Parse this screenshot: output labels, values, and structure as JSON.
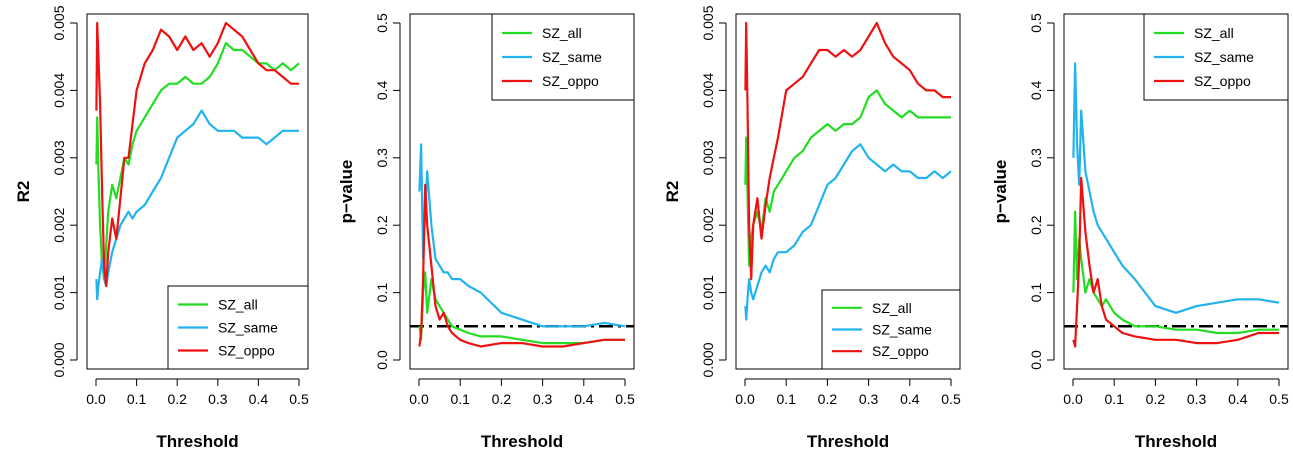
{
  "chart_data": [
    {
      "type": "line",
      "xlabel": "Threshold",
      "ylabel": "R2",
      "xlim": [
        0,
        0.5
      ],
      "ylim": [
        0,
        0.005
      ],
      "xticks": [
        0.0,
        0.1,
        0.2,
        0.3,
        0.4,
        0.5
      ],
      "xtick_labels": [
        "0.0",
        "0.1",
        "0.2",
        "0.3",
        "0.4",
        "0.5"
      ],
      "yticks": [
        0,
        0.001,
        0.002,
        0.003,
        0.004,
        0.005
      ],
      "ytick_labels": [
        "0.000",
        "0.001",
        "0.002",
        "0.003",
        "0.004",
        "0.005"
      ],
      "ytick_rotated": true,
      "legend_position": "bottom-right",
      "series": [
        {
          "name": "SZ_all",
          "color": "#22dd22",
          "x": [
            0.001,
            0.003,
            0.006,
            0.01,
            0.015,
            0.02,
            0.025,
            0.03,
            0.04,
            0.05,
            0.06,
            0.07,
            0.08,
            0.09,
            0.1,
            0.12,
            0.14,
            0.16,
            0.18,
            0.2,
            0.22,
            0.24,
            0.26,
            0.28,
            0.3,
            0.32,
            0.34,
            0.36,
            0.38,
            0.4,
            0.42,
            0.44,
            0.46,
            0.48,
            0.5
          ],
          "y": [
            0.0029,
            0.0036,
            0.0028,
            0.002,
            0.0014,
            0.0012,
            0.0017,
            0.0022,
            0.0026,
            0.0024,
            0.0027,
            0.003,
            0.0029,
            0.0032,
            0.0034,
            0.0036,
            0.0038,
            0.004,
            0.0041,
            0.0041,
            0.0042,
            0.0041,
            0.0041,
            0.0042,
            0.0044,
            0.0047,
            0.0046,
            0.0046,
            0.0045,
            0.0044,
            0.0044,
            0.0043,
            0.0044,
            0.0043,
            0.0044
          ]
        },
        {
          "name": "SZ_same",
          "color": "#22b3ee",
          "x": [
            0.001,
            0.003,
            0.006,
            0.01,
            0.015,
            0.02,
            0.025,
            0.03,
            0.04,
            0.05,
            0.06,
            0.07,
            0.08,
            0.09,
            0.1,
            0.12,
            0.14,
            0.16,
            0.18,
            0.2,
            0.22,
            0.24,
            0.26,
            0.28,
            0.3,
            0.32,
            0.34,
            0.36,
            0.38,
            0.4,
            0.42,
            0.44,
            0.46,
            0.48,
            0.5
          ],
          "y": [
            0.0012,
            0.0009,
            0.0011,
            0.0013,
            0.0015,
            0.0012,
            0.0011,
            0.0013,
            0.0016,
            0.0018,
            0.002,
            0.0021,
            0.0022,
            0.0021,
            0.0022,
            0.0023,
            0.0025,
            0.0027,
            0.003,
            0.0033,
            0.0034,
            0.0035,
            0.0037,
            0.0035,
            0.0034,
            0.0034,
            0.0034,
            0.0033,
            0.0033,
            0.0033,
            0.0032,
            0.0033,
            0.0034,
            0.0034,
            0.0034
          ]
        },
        {
          "name": "SZ_oppo",
          "color": "#ee1111",
          "x": [
            0.001,
            0.003,
            0.006,
            0.01,
            0.015,
            0.02,
            0.025,
            0.03,
            0.04,
            0.05,
            0.06,
            0.07,
            0.08,
            0.09,
            0.1,
            0.12,
            0.14,
            0.16,
            0.18,
            0.2,
            0.22,
            0.24,
            0.26,
            0.28,
            0.3,
            0.32,
            0.34,
            0.36,
            0.38,
            0.4,
            0.42,
            0.44,
            0.46,
            0.48,
            0.5
          ],
          "y": [
            0.0037,
            0.005,
            0.0045,
            0.0038,
            0.0025,
            0.0014,
            0.0011,
            0.0016,
            0.0021,
            0.0018,
            0.0024,
            0.003,
            0.003,
            0.0035,
            0.004,
            0.0044,
            0.0046,
            0.0049,
            0.0048,
            0.0046,
            0.0048,
            0.0046,
            0.0047,
            0.0045,
            0.0047,
            0.005,
            0.0049,
            0.0048,
            0.0046,
            0.0044,
            0.0043,
            0.0043,
            0.0042,
            0.0041,
            0.0041
          ]
        }
      ]
    },
    {
      "type": "line",
      "xlabel": "Threshold",
      "ylabel": "p−value",
      "xlim": [
        0,
        0.5
      ],
      "ylim": [
        0,
        0.5
      ],
      "xticks": [
        0.0,
        0.1,
        0.2,
        0.3,
        0.4,
        0.5
      ],
      "xtick_labels": [
        "0.0",
        "0.1",
        "0.2",
        "0.3",
        "0.4",
        "0.5"
      ],
      "yticks": [
        0.0,
        0.1,
        0.2,
        0.3,
        0.4,
        0.5
      ],
      "ytick_labels": [
        "0.0",
        "0.1",
        "0.2",
        "0.3",
        "0.4",
        "0.5"
      ],
      "ytick_rotated": true,
      "legend_position": "top-right",
      "reference_line": {
        "y": 0.05,
        "style": "dashed",
        "color": "#000000"
      },
      "series": [
        {
          "name": "SZ_all",
          "color": "#22dd22",
          "x": [
            0.001,
            0.005,
            0.01,
            0.015,
            0.02,
            0.03,
            0.04,
            0.05,
            0.06,
            0.07,
            0.08,
            0.1,
            0.12,
            0.15,
            0.2,
            0.25,
            0.3,
            0.35,
            0.4,
            0.45,
            0.5
          ],
          "y": [
            0.05,
            0.03,
            0.1,
            0.13,
            0.07,
            0.12,
            0.09,
            0.08,
            0.07,
            0.06,
            0.05,
            0.045,
            0.04,
            0.035,
            0.035,
            0.03,
            0.025,
            0.025,
            0.025,
            0.03,
            0.03
          ]
        },
        {
          "name": "SZ_same",
          "color": "#22b3ee",
          "x": [
            0.001,
            0.005,
            0.01,
            0.015,
            0.02,
            0.03,
            0.04,
            0.05,
            0.06,
            0.07,
            0.08,
            0.1,
            0.12,
            0.15,
            0.2,
            0.25,
            0.3,
            0.35,
            0.4,
            0.45,
            0.5
          ],
          "y": [
            0.25,
            0.32,
            0.15,
            0.22,
            0.28,
            0.2,
            0.15,
            0.14,
            0.13,
            0.13,
            0.12,
            0.12,
            0.11,
            0.1,
            0.07,
            0.06,
            0.05,
            0.05,
            0.05,
            0.055,
            0.05
          ]
        },
        {
          "name": "SZ_oppo",
          "color": "#ee1111",
          "x": [
            0.001,
            0.005,
            0.01,
            0.015,
            0.02,
            0.03,
            0.04,
            0.05,
            0.06,
            0.07,
            0.08,
            0.1,
            0.12,
            0.15,
            0.2,
            0.25,
            0.3,
            0.35,
            0.4,
            0.45,
            0.5
          ],
          "y": [
            0.02,
            0.04,
            0.12,
            0.26,
            0.2,
            0.14,
            0.08,
            0.06,
            0.07,
            0.05,
            0.04,
            0.03,
            0.025,
            0.02,
            0.025,
            0.025,
            0.02,
            0.02,
            0.025,
            0.03,
            0.03
          ]
        }
      ]
    },
    {
      "type": "line",
      "xlabel": "Threshold",
      "ylabel": "R2",
      "xlim": [
        0,
        0.5
      ],
      "ylim": [
        0,
        0.005
      ],
      "xticks": [
        0.0,
        0.1,
        0.2,
        0.3,
        0.4,
        0.5
      ],
      "xtick_labels": [
        "0.0",
        "0.1",
        "0.2",
        "0.3",
        "0.4",
        "0.5"
      ],
      "yticks": [
        0,
        0.001,
        0.002,
        0.003,
        0.004,
        0.005
      ],
      "ytick_labels": [
        "0.000",
        "0.001",
        "0.002",
        "0.003",
        "0.004",
        "0.005"
      ],
      "ytick_rotated": true,
      "legend_position": "bottom-right",
      "series": [
        {
          "name": "SZ_all",
          "color": "#22dd22",
          "x": [
            0.001,
            0.003,
            0.006,
            0.01,
            0.015,
            0.02,
            0.03,
            0.04,
            0.05,
            0.06,
            0.07,
            0.08,
            0.1,
            0.12,
            0.14,
            0.16,
            0.18,
            0.2,
            0.22,
            0.24,
            0.26,
            0.28,
            0.3,
            0.32,
            0.34,
            0.36,
            0.38,
            0.4,
            0.42,
            0.44,
            0.46,
            0.48,
            0.5
          ],
          "y": [
            0.0026,
            0.0033,
            0.0025,
            0.0014,
            0.0018,
            0.002,
            0.0022,
            0.0019,
            0.0024,
            0.0022,
            0.0025,
            0.0026,
            0.0028,
            0.003,
            0.0031,
            0.0033,
            0.0034,
            0.0035,
            0.0034,
            0.0035,
            0.0035,
            0.0036,
            0.0039,
            0.004,
            0.0038,
            0.0037,
            0.0036,
            0.0037,
            0.0036,
            0.0036,
            0.0036,
            0.0036,
            0.0036
          ]
        },
        {
          "name": "SZ_same",
          "color": "#22b3ee",
          "x": [
            0.001,
            0.003,
            0.006,
            0.01,
            0.015,
            0.02,
            0.03,
            0.04,
            0.05,
            0.06,
            0.07,
            0.08,
            0.1,
            0.12,
            0.14,
            0.16,
            0.18,
            0.2,
            0.22,
            0.24,
            0.26,
            0.28,
            0.3,
            0.32,
            0.34,
            0.36,
            0.38,
            0.4,
            0.42,
            0.44,
            0.46,
            0.48,
            0.5
          ],
          "y": [
            0.0008,
            0.0006,
            0.0009,
            0.0012,
            0.001,
            0.0009,
            0.0011,
            0.0013,
            0.0014,
            0.0013,
            0.0015,
            0.0016,
            0.0016,
            0.0017,
            0.0019,
            0.002,
            0.0023,
            0.0026,
            0.0027,
            0.0029,
            0.0031,
            0.0032,
            0.003,
            0.0029,
            0.0028,
            0.0029,
            0.0028,
            0.0028,
            0.0027,
            0.0027,
            0.0028,
            0.0027,
            0.0028
          ]
        },
        {
          "name": "SZ_oppo",
          "color": "#ee1111",
          "x": [
            0.001,
            0.003,
            0.006,
            0.01,
            0.015,
            0.02,
            0.03,
            0.04,
            0.05,
            0.06,
            0.07,
            0.08,
            0.1,
            0.12,
            0.14,
            0.16,
            0.18,
            0.2,
            0.22,
            0.24,
            0.26,
            0.28,
            0.3,
            0.32,
            0.34,
            0.36,
            0.38,
            0.4,
            0.42,
            0.44,
            0.46,
            0.48,
            0.5
          ],
          "y": [
            0.004,
            0.005,
            0.0038,
            0.002,
            0.0012,
            0.002,
            0.0024,
            0.0018,
            0.0023,
            0.0027,
            0.003,
            0.0033,
            0.004,
            0.0041,
            0.0042,
            0.0044,
            0.0046,
            0.0046,
            0.0045,
            0.0046,
            0.0045,
            0.0046,
            0.0048,
            0.005,
            0.0047,
            0.0045,
            0.0044,
            0.0043,
            0.0041,
            0.004,
            0.004,
            0.0039,
            0.0039
          ]
        }
      ]
    },
    {
      "type": "line",
      "xlabel": "Threshold",
      "ylabel": "p−value",
      "xlim": [
        0,
        0.5
      ],
      "ylim": [
        0,
        0.5
      ],
      "xticks": [
        0.0,
        0.1,
        0.2,
        0.3,
        0.4,
        0.5
      ],
      "xtick_labels": [
        "0.0",
        "0.1",
        "0.2",
        "0.3",
        "0.4",
        "0.5"
      ],
      "yticks": [
        0.0,
        0.1,
        0.2,
        0.3,
        0.4,
        0.5
      ],
      "ytick_labels": [
        "0.0",
        "0.1",
        "0.2",
        "0.3",
        "0.4",
        "0.5"
      ],
      "ytick_rotated": true,
      "legend_position": "top-right",
      "reference_line": {
        "y": 0.05,
        "style": "dashed",
        "color": "#000000"
      },
      "series": [
        {
          "name": "SZ_all",
          "color": "#22dd22",
          "x": [
            0.001,
            0.005,
            0.01,
            0.015,
            0.02,
            0.03,
            0.04,
            0.05,
            0.06,
            0.07,
            0.08,
            0.1,
            0.12,
            0.15,
            0.2,
            0.25,
            0.3,
            0.35,
            0.4,
            0.45,
            0.5
          ],
          "y": [
            0.1,
            0.22,
            0.12,
            0.18,
            0.15,
            0.1,
            0.12,
            0.1,
            0.09,
            0.08,
            0.09,
            0.07,
            0.06,
            0.05,
            0.05,
            0.045,
            0.045,
            0.04,
            0.04,
            0.045,
            0.045
          ]
        },
        {
          "name": "SZ_same",
          "color": "#22b3ee",
          "x": [
            0.001,
            0.005,
            0.01,
            0.015,
            0.02,
            0.03,
            0.04,
            0.05,
            0.06,
            0.07,
            0.08,
            0.1,
            0.12,
            0.15,
            0.2,
            0.25,
            0.3,
            0.35,
            0.4,
            0.45,
            0.5
          ],
          "y": [
            0.3,
            0.44,
            0.32,
            0.26,
            0.37,
            0.28,
            0.25,
            0.22,
            0.2,
            0.19,
            0.18,
            0.16,
            0.14,
            0.12,
            0.08,
            0.07,
            0.08,
            0.085,
            0.09,
            0.09,
            0.085
          ]
        },
        {
          "name": "SZ_oppo",
          "color": "#ee1111",
          "x": [
            0.001,
            0.005,
            0.01,
            0.015,
            0.02,
            0.03,
            0.04,
            0.05,
            0.06,
            0.07,
            0.08,
            0.1,
            0.12,
            0.15,
            0.2,
            0.25,
            0.3,
            0.35,
            0.4,
            0.45,
            0.5
          ],
          "y": [
            0.03,
            0.02,
            0.08,
            0.15,
            0.27,
            0.19,
            0.14,
            0.1,
            0.12,
            0.08,
            0.06,
            0.05,
            0.04,
            0.035,
            0.03,
            0.03,
            0.025,
            0.025,
            0.03,
            0.04,
            0.04
          ]
        }
      ]
    }
  ]
}
